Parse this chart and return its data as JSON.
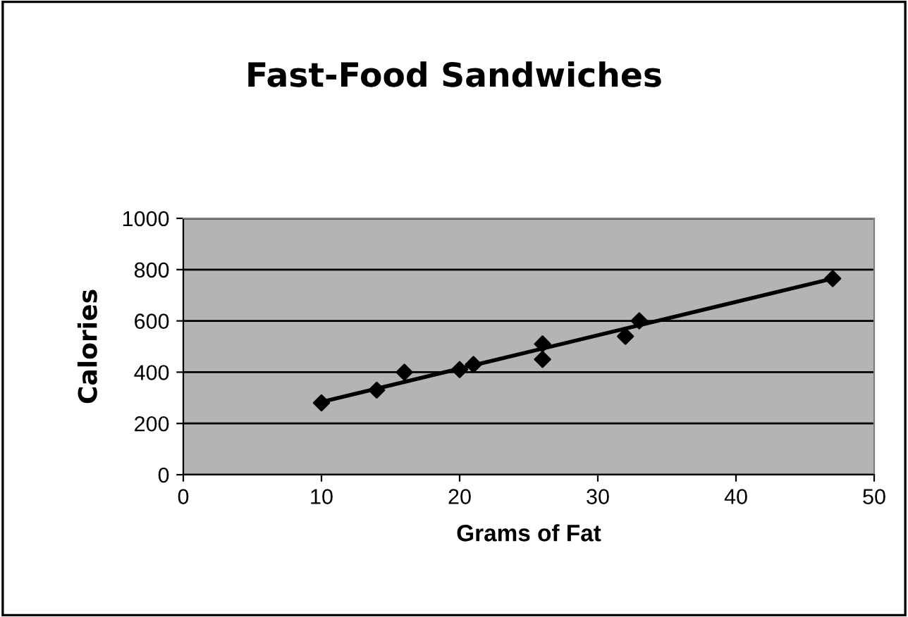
{
  "chart_data": {
    "type": "scatter",
    "title": "Fast-Food Sandwiches",
    "xlabel": "Grams of Fat",
    "ylabel": "Calories",
    "series": [
      {
        "color": "#000000",
        "marker": "diamond",
        "x": [
          10,
          14,
          16,
          20,
          21,
          26,
          26,
          32,
          33,
          47
        ],
        "values": [
          280,
          330,
          400,
          410,
          430,
          510,
          450,
          540,
          600,
          765
        ]
      },
      {
        "type": "line",
        "color": "#000000",
        "marker": "none",
        "x": [
          10,
          47
        ],
        "values": [
          284,
          765
        ]
      }
    ],
    "xlim": [
      0,
      50
    ],
    "xticks": [
      0,
      10,
      20,
      30,
      40,
      50
    ],
    "ylim": [
      0,
      1000
    ],
    "yticks": [
      0,
      200,
      400,
      600,
      800,
      1000
    ],
    "grid": "y"
  }
}
